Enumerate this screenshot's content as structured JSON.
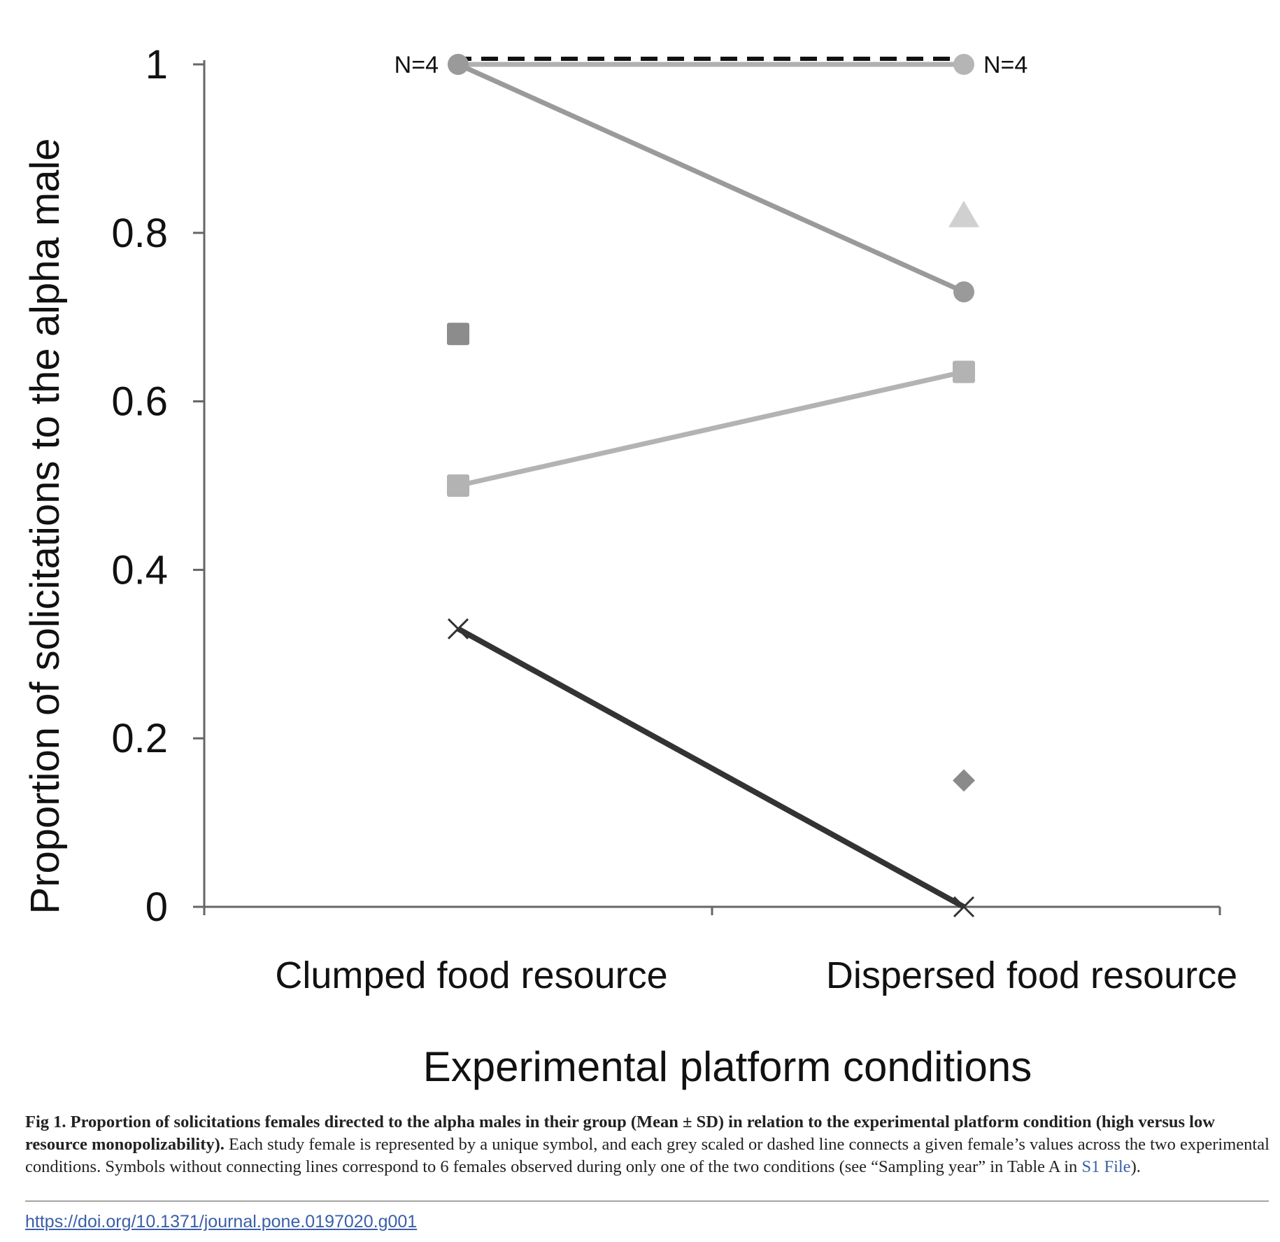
{
  "chart_data": {
    "type": "scatter",
    "categories": [
      "Clumped food resource",
      "Dispersed food resource"
    ],
    "xlabel": "Experimental platform conditions",
    "ylabel": "Proportion of solicitations to the alpha male",
    "ylim": [
      0,
      1
    ],
    "yticks": [
      "0",
      "0.2",
      "0.4",
      "0.6",
      "0.8",
      "1"
    ],
    "ytick_values": [
      0,
      0.2,
      0.4,
      0.6,
      0.8,
      1
    ],
    "grid": false,
    "series": [
      {
        "marker": "circle",
        "color": "#a8a8a8",
        "line": "dashed",
        "line_color": "#111111",
        "values": [
          1.0,
          1.0
        ]
      },
      {
        "marker": "circle",
        "color": "#b5b5b5",
        "line": "solid",
        "line_color": "#b0b0b0",
        "values": [
          1.0,
          1.0
        ]
      },
      {
        "marker": "circle",
        "color": "#9a9a9a",
        "line": "solid",
        "line_color": "#9a9a9a",
        "values": [
          1.0,
          0.73
        ]
      },
      {
        "marker": "square",
        "color": "#b3b3b3",
        "line": "solid",
        "line_color": "#b3b3b3",
        "values": [
          0.5,
          0.635
        ]
      },
      {
        "marker": "cross",
        "color": "#333333",
        "line": "solid",
        "line_color": "#333333",
        "values": [
          0.33,
          0.0
        ]
      },
      {
        "marker": "square",
        "color": "#8c8c8c",
        "line": "none",
        "values": [
          0.68,
          null
        ]
      },
      {
        "marker": "triangle",
        "color": "#d0d0d0",
        "line": "none",
        "values": [
          null,
          0.82
        ]
      },
      {
        "marker": "diamond",
        "color": "#8a8a8a",
        "line": "none",
        "values": [
          null,
          0.15
        ]
      }
    ],
    "annotations": [
      {
        "text": "N=4",
        "category": 0,
        "y": 1.0,
        "side": "left"
      },
      {
        "text": "N=4",
        "category": 1,
        "y": 1.0,
        "side": "right"
      }
    ]
  },
  "caption": {
    "bold": "Fig 1. Proportion of solicitations females directed to the alpha males in their group (Mean ± SD) in relation to the experimental platform condition (high versus low resource monopolizability).",
    "text": " Each study female is represented by a unique symbol, and each grey scaled or dashed line connects a given female’s values across the two experimental conditions. Symbols without connecting lines correspond to 6 females observed during only one of the two conditions (see “Sampling year” in Table A in ",
    "link": "S1 File",
    "end": ")."
  },
  "doi": "https://doi.org/10.1371/journal.pone.0197020.g001"
}
